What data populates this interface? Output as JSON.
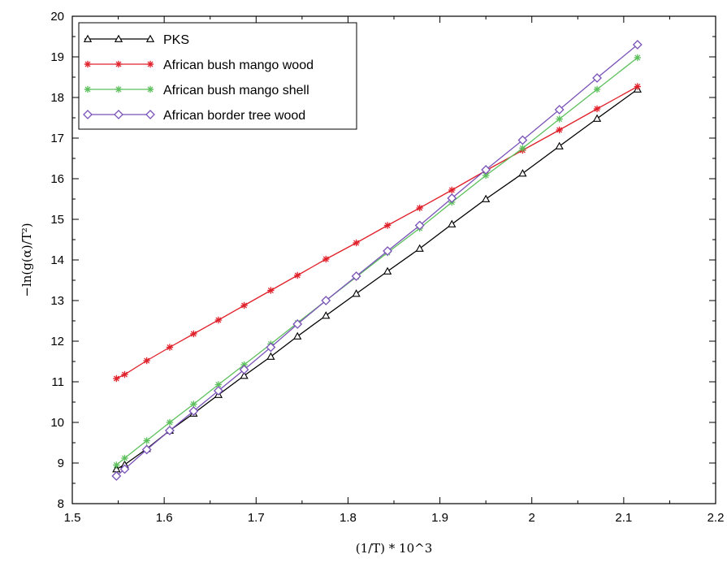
{
  "chart_data": {
    "type": "line",
    "xlabel": "(1/T) * 10^3",
    "ylabel": "−ln(g(α)/T²)",
    "xlim": [
      1.5,
      2.2
    ],
    "ylim": [
      8,
      20
    ],
    "xticks": [
      "1.5",
      "1.6",
      "1.7",
      "1.8",
      "1.9",
      "2",
      "2.1",
      "2.2"
    ],
    "yticks": [
      "8",
      "9",
      "10",
      "11",
      "12",
      "13",
      "14",
      "15",
      "16",
      "17",
      "18",
      "19",
      "20"
    ],
    "grid": false,
    "legend_position": "top-left",
    "series": [
      {
        "name": "PKS",
        "color": "#000000",
        "marker": "triangle",
        "x": [
          1.548,
          1.557,
          1.581,
          1.606,
          1.632,
          1.659,
          1.687,
          1.716,
          1.745,
          1.776,
          1.809,
          1.843,
          1.878,
          1.913,
          1.95,
          1.99,
          2.03,
          2.071,
          2.115
        ],
        "y": [
          8.85,
          8.96,
          9.35,
          9.8,
          10.22,
          10.68,
          11.15,
          11.62,
          12.12,
          12.63,
          13.17,
          13.72,
          14.28,
          14.88,
          15.5,
          16.13,
          16.8,
          17.48,
          18.2
        ]
      },
      {
        "name": "African bush mango wood",
        "color": "#e0202a",
        "marker": "asterisk",
        "x": [
          1.548,
          1.557,
          1.581,
          1.606,
          1.632,
          1.659,
          1.687,
          1.716,
          1.745,
          1.776,
          1.809,
          1.843,
          1.878,
          1.913,
          1.95,
          1.99,
          2.03,
          2.071,
          2.115
        ],
        "y": [
          11.08,
          11.18,
          11.52,
          11.85,
          12.18,
          12.52,
          12.88,
          13.25,
          13.62,
          14.02,
          14.42,
          14.85,
          15.28,
          15.72,
          16.2,
          16.7,
          17.2,
          17.72,
          18.27
        ]
      },
      {
        "name": "African bush mango shell",
        "color": "#5cc05c",
        "marker": "asterisk",
        "x": [
          1.548,
          1.557,
          1.581,
          1.606,
          1.632,
          1.659,
          1.687,
          1.716,
          1.745,
          1.776,
          1.809,
          1.843,
          1.878,
          1.913,
          1.95,
          1.99,
          2.03,
          2.071,
          2.115
        ],
        "y": [
          8.95,
          9.12,
          9.55,
          10.0,
          10.45,
          10.93,
          11.42,
          11.93,
          12.45,
          13.0,
          13.58,
          14.18,
          14.78,
          15.42,
          16.08,
          16.75,
          17.47,
          18.2,
          18.98
        ]
      },
      {
        "name": "African border tree wood",
        "color": "#7a52b8",
        "marker": "diamond",
        "x": [
          1.548,
          1.557,
          1.581,
          1.606,
          1.632,
          1.659,
          1.687,
          1.716,
          1.745,
          1.776,
          1.809,
          1.843,
          1.878,
          1.913,
          1.95,
          1.99,
          2.03,
          2.071,
          2.115
        ],
        "y": [
          8.68,
          8.85,
          9.33,
          9.8,
          10.28,
          10.78,
          11.3,
          11.85,
          12.42,
          13.0,
          13.6,
          14.22,
          14.85,
          15.52,
          16.22,
          16.95,
          17.7,
          18.48,
          19.3
        ]
      }
    ]
  }
}
